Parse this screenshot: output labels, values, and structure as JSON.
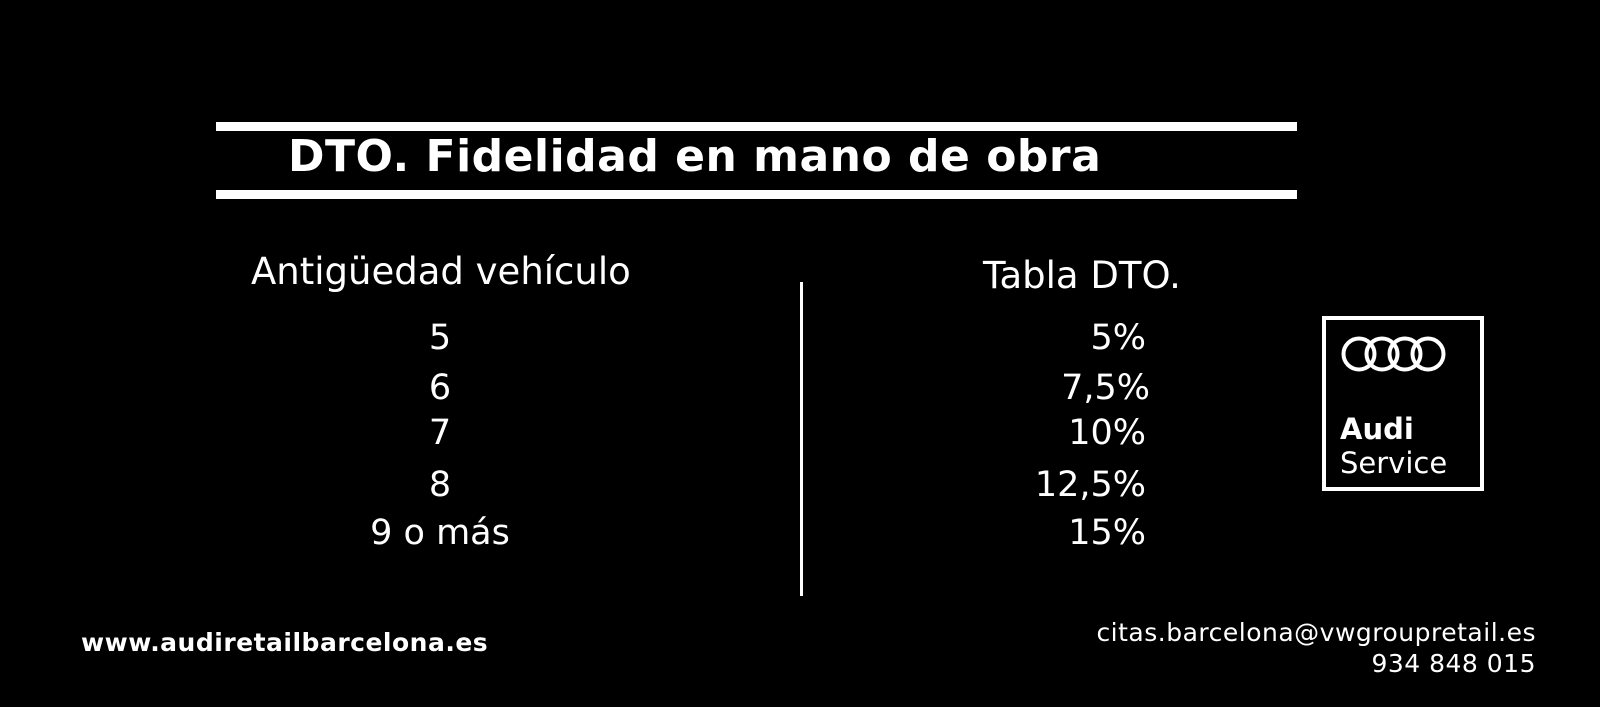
{
  "header": {
    "title": "DTO. Fidelidad en mano de obra"
  },
  "table": {
    "left_header": "Antigüedad vehículo",
    "right_header": "Tabla DTO.",
    "rows": [
      {
        "age": "5",
        "discount": "5%"
      },
      {
        "age": "6",
        "discount": "7,5%"
      },
      {
        "age": "7",
        "discount": "10%"
      },
      {
        "age": "8",
        "discount": "12,5%"
      },
      {
        "age": "9 o más",
        "discount": "15%"
      }
    ]
  },
  "logo": {
    "icon": "four-rings-icon",
    "brand": "Audi",
    "sub": "Service"
  },
  "footer": {
    "website": "www.audiretailbarcelona.es",
    "email": "citas.barcelona@vwgroupretail.es",
    "phone": "934 848 015"
  },
  "colors": {
    "background": "#000000",
    "foreground": "#ffffff"
  }
}
